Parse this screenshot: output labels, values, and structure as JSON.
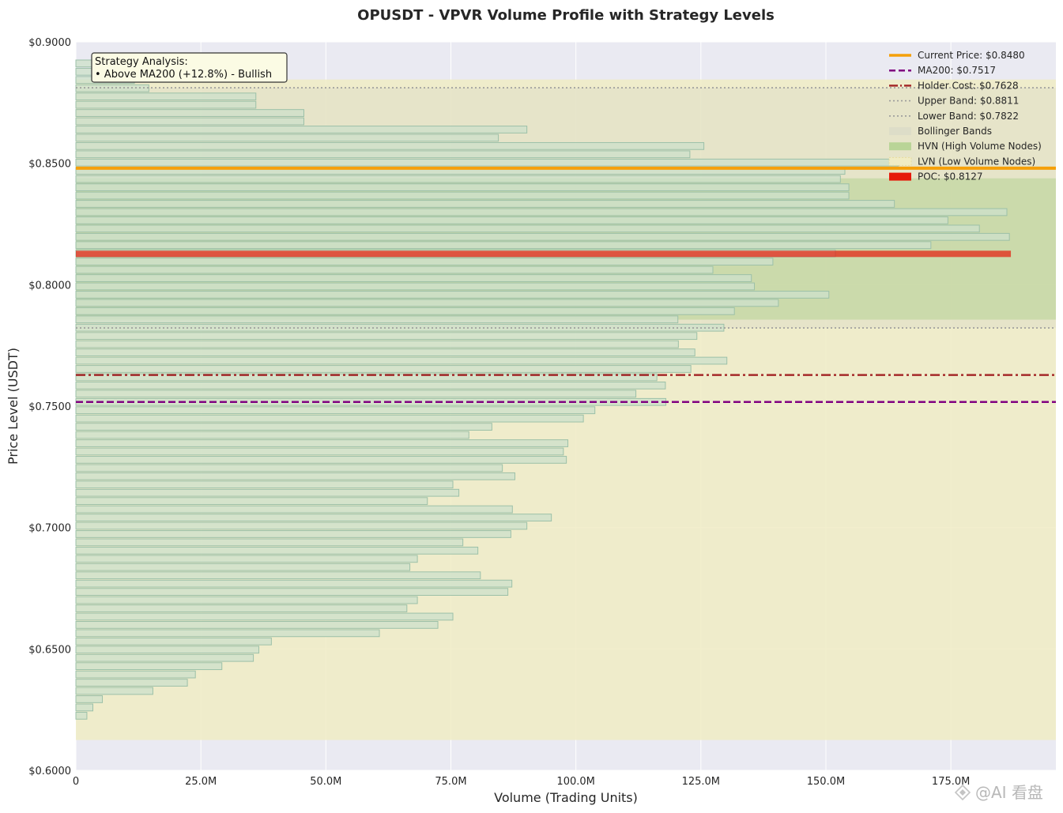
{
  "chart_data": {
    "type": "bar",
    "orientation": "horizontal",
    "title": "OPUSDT - VPVR Volume Profile with Strategy Levels",
    "xlabel": "Volume (Trading Units)",
    "ylabel": "Price Level (USDT)",
    "xlim": [
      0,
      196
    ],
    "ylim": [
      0.6,
      0.9
    ],
    "x_unit": "M",
    "xticks": [
      0,
      25,
      50,
      75,
      100,
      125,
      150,
      175
    ],
    "xtick_labels": [
      "0",
      "25.0M",
      "50.0M",
      "75.0M",
      "100.0M",
      "125.0M",
      "150.0M",
      "175.0M"
    ],
    "yticks": [
      0.6,
      0.65,
      0.7,
      0.75,
      0.8,
      0.85,
      0.9
    ],
    "ytick_labels": [
      "$0.6000",
      "$0.6500",
      "$0.7000",
      "$0.7500",
      "$0.8000",
      "$0.8500",
      "$0.9000"
    ],
    "grid": true,
    "legend_position": "top-right",
    "bins": [
      {
        "price": 0.6225,
        "volume": 2.2
      },
      {
        "price": 0.6259,
        "volume": 3.4
      },
      {
        "price": 0.6293,
        "volume": 5.3
      },
      {
        "price": 0.6327,
        "volume": 15.4
      },
      {
        "price": 0.6361,
        "volume": 22.3
      },
      {
        "price": 0.6395,
        "volume": 23.9
      },
      {
        "price": 0.6429,
        "volume": 29.2
      },
      {
        "price": 0.6463,
        "volume": 35.5
      },
      {
        "price": 0.6497,
        "volume": 36.6
      },
      {
        "price": 0.6531,
        "volume": 39.1
      },
      {
        "price": 0.6565,
        "volume": 60.7
      },
      {
        "price": 0.6599,
        "volume": 72.4
      },
      {
        "price": 0.6633,
        "volume": 75.4
      },
      {
        "price": 0.6667,
        "volume": 66.2
      },
      {
        "price": 0.6701,
        "volume": 68.3
      },
      {
        "price": 0.6735,
        "volume": 86.4
      },
      {
        "price": 0.6769,
        "volume": 87.2
      },
      {
        "price": 0.6803,
        "volume": 80.9
      },
      {
        "price": 0.6837,
        "volume": 66.8
      },
      {
        "price": 0.6871,
        "volume": 68.3
      },
      {
        "price": 0.6905,
        "volume": 80.4
      },
      {
        "price": 0.6939,
        "volume": 77.4
      },
      {
        "price": 0.6973,
        "volume": 87.0
      },
      {
        "price": 0.7007,
        "volume": 90.2
      },
      {
        "price": 0.7041,
        "volume": 95.1
      },
      {
        "price": 0.7075,
        "volume": 87.3
      },
      {
        "price": 0.7109,
        "volume": 70.3
      },
      {
        "price": 0.7143,
        "volume": 76.6
      },
      {
        "price": 0.7177,
        "volume": 75.4
      },
      {
        "price": 0.7211,
        "volume": 87.8
      },
      {
        "price": 0.7245,
        "volume": 85.3
      },
      {
        "price": 0.7279,
        "volume": 98.1
      },
      {
        "price": 0.7313,
        "volume": 97.5
      },
      {
        "price": 0.7347,
        "volume": 98.4
      },
      {
        "price": 0.7381,
        "volume": 78.6
      },
      {
        "price": 0.7415,
        "volume": 83.2
      },
      {
        "price": 0.7449,
        "volume": 101.5
      },
      {
        "price": 0.7483,
        "volume": 103.8
      },
      {
        "price": 0.7517,
        "volume": 118.0
      },
      {
        "price": 0.7551,
        "volume": 112.0
      },
      {
        "price": 0.7585,
        "volume": 117.9
      },
      {
        "price": 0.7619,
        "volume": 116.2
      },
      {
        "price": 0.7653,
        "volume": 123.0
      },
      {
        "price": 0.7687,
        "volume": 130.2
      },
      {
        "price": 0.7721,
        "volume": 123.8
      },
      {
        "price": 0.7755,
        "volume": 120.5
      },
      {
        "price": 0.7789,
        "volume": 124.2
      },
      {
        "price": 0.7823,
        "volume": 129.6
      },
      {
        "price": 0.7857,
        "volume": 120.4
      },
      {
        "price": 0.7891,
        "volume": 131.7
      },
      {
        "price": 0.7925,
        "volume": 140.5
      },
      {
        "price": 0.7959,
        "volume": 150.6
      },
      {
        "price": 0.7993,
        "volume": 135.7
      },
      {
        "price": 0.8027,
        "volume": 135.1
      },
      {
        "price": 0.8061,
        "volume": 127.4
      },
      {
        "price": 0.8095,
        "volume": 139.4
      },
      {
        "price": 0.8129,
        "volume": 151.9
      },
      {
        "price": 0.8163,
        "volume": 171.0
      },
      {
        "price": 0.8197,
        "volume": 186.7
      },
      {
        "price": 0.8231,
        "volume": 180.7
      },
      {
        "price": 0.8265,
        "volume": 174.4
      },
      {
        "price": 0.8299,
        "volume": 186.2
      },
      {
        "price": 0.8333,
        "volume": 163.7
      },
      {
        "price": 0.8367,
        "volume": 154.6
      },
      {
        "price": 0.8401,
        "volume": 154.6
      },
      {
        "price": 0.8435,
        "volume": 152.9
      },
      {
        "price": 0.8469,
        "volume": 153.8
      },
      {
        "price": 0.8503,
        "volume": 164.5
      },
      {
        "price": 0.8537,
        "volume": 122.8
      },
      {
        "price": 0.8571,
        "volume": 125.6
      },
      {
        "price": 0.8605,
        "volume": 84.5
      },
      {
        "price": 0.8639,
        "volume": 90.2
      },
      {
        "price": 0.8673,
        "volume": 45.6
      },
      {
        "price": 0.8707,
        "volume": 45.6
      },
      {
        "price": 0.8741,
        "volume": 36.0
      },
      {
        "price": 0.8775,
        "volume": 36.0
      },
      {
        "price": 0.8809,
        "volume": 14.6
      },
      {
        "price": 0.8843,
        "volume": 11.7
      },
      {
        "price": 0.8877,
        "volume": 11.7
      },
      {
        "price": 0.8911,
        "volume": 11.7
      }
    ],
    "hvn_range": [
      0.7856,
      0.8438
    ],
    "lvn_range": [
      0.6125,
      0.8845
    ],
    "bollinger_range": [
      0.7822,
      0.8811
    ],
    "levels": {
      "current_price": 0.848,
      "ma200": 0.7517,
      "holder_cost": 0.7628,
      "upper_band": 0.8811,
      "lower_band": 0.7822,
      "poc": 0.8127
    },
    "colors": {
      "bar_fill": "#cde0ca",
      "bar_edge": "#9cc0a8",
      "hvn": "#b4d291",
      "lvn": "#f0ecc4",
      "bollinger": "#dcdcc8",
      "current_price": "#f5a00a",
      "ma200": "#800080",
      "holder_cost": "#a52a2a",
      "bands": "#9a9a9a",
      "poc": "#e61a0a",
      "plot_bg": "#eaeaf2"
    },
    "legend": [
      {
        "key": "current_price",
        "label": "Current Price: $0.8480"
      },
      {
        "key": "ma200",
        "label": "MA200: $0.7517"
      },
      {
        "key": "holder_cost",
        "label": "Holder Cost: $0.7628"
      },
      {
        "key": "upper_band",
        "label": "Upper Band: $0.8811"
      },
      {
        "key": "lower_band",
        "label": "Lower Band: $0.7822"
      },
      {
        "key": "bollinger",
        "label": "Bollinger Bands"
      },
      {
        "key": "hvn",
        "label": "HVN (High Volume Nodes)"
      },
      {
        "key": "lvn",
        "label": "LVN (Low Volume Nodes)"
      },
      {
        "key": "poc",
        "label": "POC: $0.8127"
      }
    ],
    "annotation": {
      "lines": [
        "Strategy Analysis:",
        "• Above MA200 (+12.8%) - Bullish"
      ]
    }
  },
  "watermark": "@AI 看盘"
}
